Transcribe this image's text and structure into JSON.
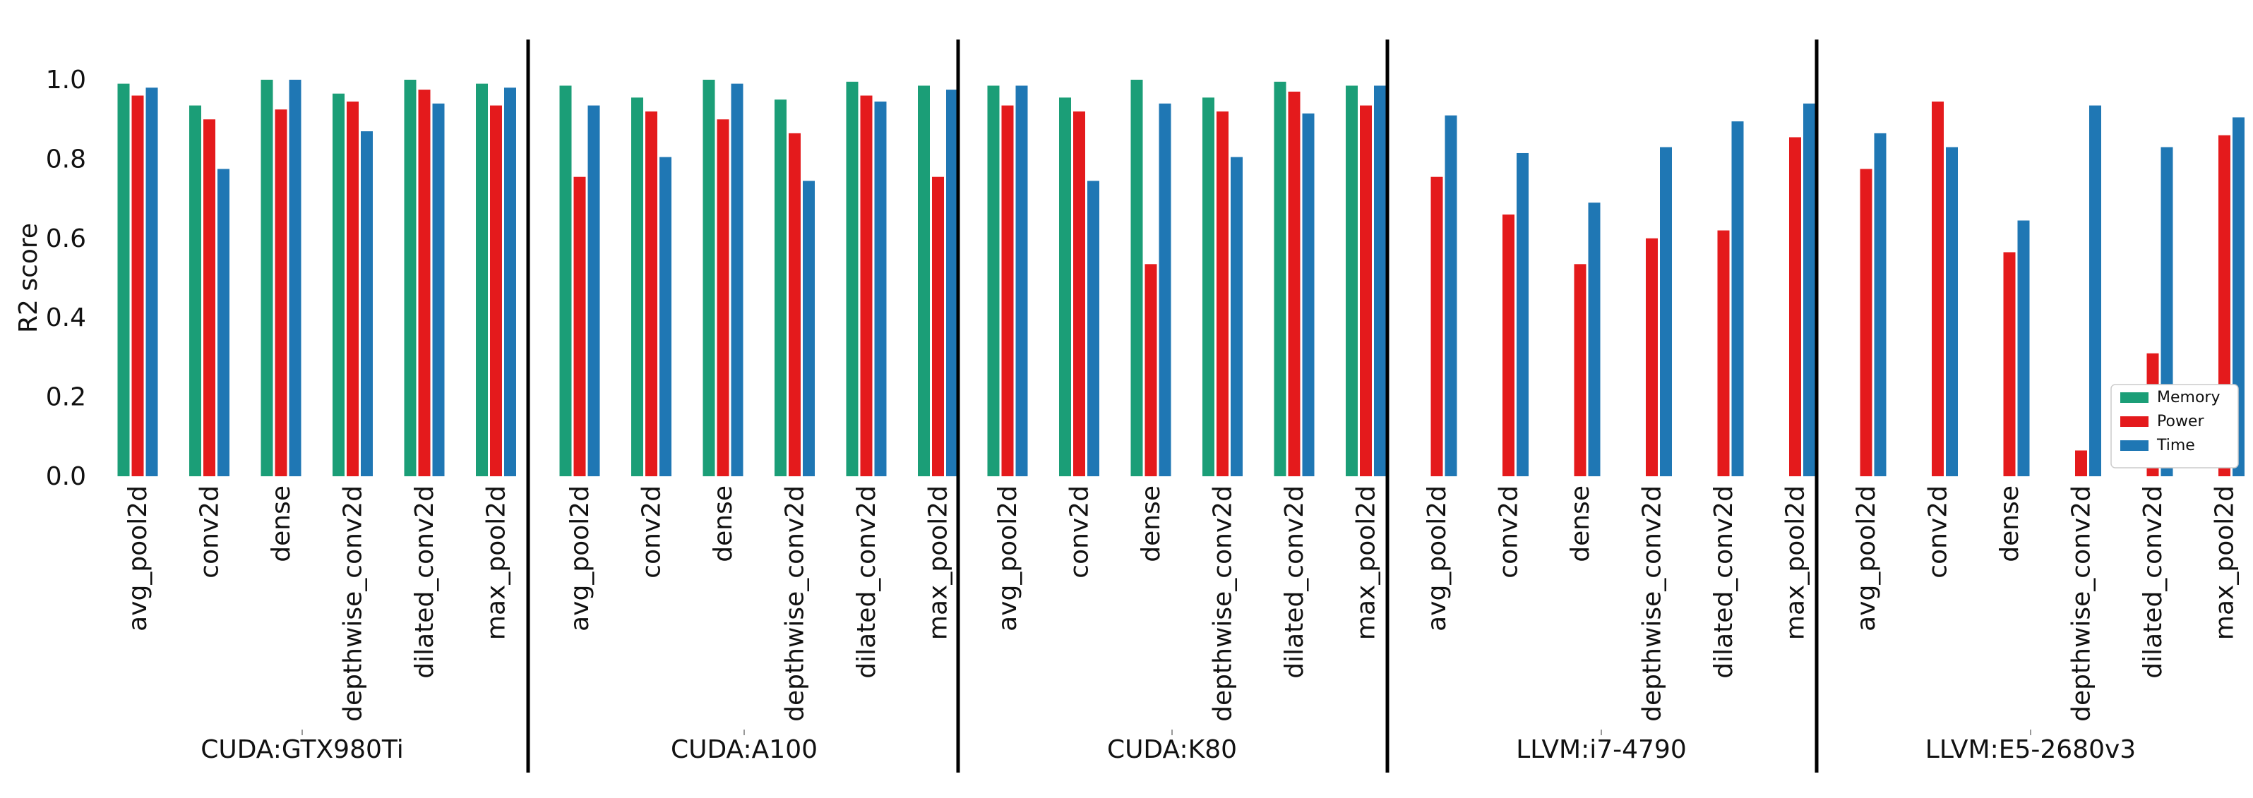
{
  "chart_data": {
    "type": "bar",
    "ylabel": "R2 score",
    "ylim": [
      0,
      1.1
    ],
    "yticks": [
      "0.0",
      "0.2",
      "0.4",
      "0.6",
      "0.8",
      "1.0"
    ],
    "categories": [
      "avg_pool2d",
      "conv2d",
      "dense",
      "depthwise_conv2d",
      "dilated_conv2d",
      "max_pool2d"
    ],
    "legend": {
      "position": "lower-right",
      "entries": [
        {
          "name": "Memory",
          "color": "#1b9e77"
        },
        {
          "name": "Power",
          "color": "#e41a1c"
        },
        {
          "name": "Time",
          "color": "#1f77b4"
        }
      ]
    },
    "panels": [
      {
        "label": "CUDA:GTX980Ti",
        "series": [
          {
            "name": "Memory",
            "values": [
              0.99,
              0.935,
              1.0,
              0.965,
              1.0,
              0.99
            ]
          },
          {
            "name": "Power",
            "values": [
              0.96,
              0.9,
              0.925,
              0.945,
              0.975,
              0.935
            ]
          },
          {
            "name": "Time",
            "values": [
              0.98,
              0.775,
              1.0,
              0.87,
              0.94,
              0.98
            ]
          }
        ]
      },
      {
        "label": "CUDA:A100",
        "series": [
          {
            "name": "Memory",
            "values": [
              0.985,
              0.955,
              1.0,
              0.95,
              0.995,
              0.985
            ]
          },
          {
            "name": "Power",
            "values": [
              0.755,
              0.92,
              0.9,
              0.865,
              0.96,
              0.755
            ]
          },
          {
            "name": "Time",
            "values": [
              0.935,
              0.805,
              0.99,
              0.745,
              0.945,
              0.975
            ]
          }
        ]
      },
      {
        "label": "CUDA:K80",
        "series": [
          {
            "name": "Memory",
            "values": [
              0.985,
              0.955,
              1.0,
              0.955,
              0.995,
              0.985
            ]
          },
          {
            "name": "Power",
            "values": [
              0.935,
              0.92,
              0.535,
              0.92,
              0.97,
              0.935
            ]
          },
          {
            "name": "Time",
            "values": [
              0.985,
              0.745,
              0.94,
              0.805,
              0.915,
              0.985
            ]
          }
        ]
      },
      {
        "label": "LLVM:i7-4790",
        "series": [
          {
            "name": "Memory",
            "values": [
              0,
              0,
              0,
              0,
              0,
              0
            ]
          },
          {
            "name": "Power",
            "values": [
              0.755,
              0.66,
              0.535,
              0.6,
              0.62,
              0.855
            ]
          },
          {
            "name": "Time",
            "values": [
              0.91,
              0.815,
              0.69,
              0.83,
              0.895,
              0.94
            ]
          }
        ]
      },
      {
        "label": "LLVM:E5-2680v3",
        "series": [
          {
            "name": "Memory",
            "values": [
              0,
              0,
              0,
              0,
              0,
              0
            ]
          },
          {
            "name": "Power",
            "values": [
              0.775,
              0.945,
              0.565,
              0.065,
              0.31,
              0.86
            ]
          },
          {
            "name": "Time",
            "values": [
              0.865,
              0.83,
              0.645,
              0.935,
              0.83,
              0.905
            ]
          }
        ]
      }
    ]
  }
}
